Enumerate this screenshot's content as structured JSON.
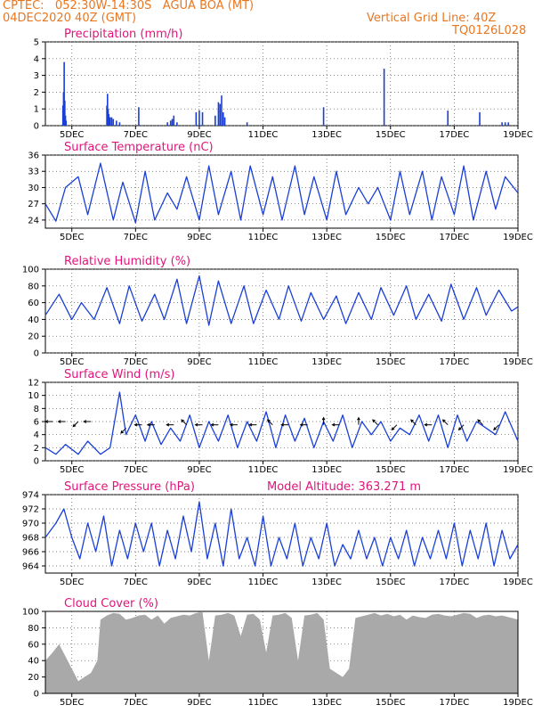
{
  "header": {
    "line1": "CPTEC:   052:30W-14:30S   AGUA BOA (MT)",
    "line2": "04DEC2020 40Z (GMT)",
    "right1": "Vertical Grid Line: 40Z",
    "right2": "TQ0126L028"
  },
  "colors": {
    "header": "#e87722",
    "title": "#e0157a",
    "series": "#1a3fd6",
    "cloud": "#a9a9a9",
    "wind_arrow": "#000000"
  },
  "date_labels": [
    "5DEC",
    "7DEC",
    "9DEC",
    "11DEC",
    "13DEC",
    "15DEC",
    "17DEC",
    "19DEC"
  ],
  "chart_data": [
    {
      "type": "bar",
      "title": "Precipitation (mm/h)",
      "ylim": [
        0,
        5
      ],
      "yticks": [
        "0",
        "1",
        "2",
        "3",
        "4",
        "5"
      ],
      "x_range_days": [
        4.17,
        19.0
      ],
      "x": [
        4.72,
        4.74,
        4.76,
        4.78,
        4.8,
        4.82,
        6.1,
        6.12,
        6.14,
        6.16,
        6.2,
        6.25,
        6.3,
        6.4,
        6.5,
        7.1,
        8.0,
        8.1,
        8.15,
        8.2,
        8.3,
        8.9,
        9.0,
        9.1,
        9.5,
        9.6,
        9.65,
        9.7,
        9.75,
        9.8,
        10.5,
        12.9,
        14.8,
        16.8,
        17.8,
        18.5,
        18.6,
        18.7
      ],
      "values": [
        1.2,
        2.0,
        3.8,
        1.5,
        0.6,
        0.3,
        1.2,
        1.9,
        1.0,
        0.7,
        0.5,
        0.5,
        0.4,
        0.3,
        0.2,
        1.1,
        0.2,
        0.3,
        0.4,
        0.6,
        0.2,
        0.8,
        0.9,
        0.8,
        0.6,
        1.4,
        1.3,
        1.8,
        0.8,
        0.5,
        0.2,
        1.1,
        3.4,
        0.9,
        0.8,
        0.2,
        0.2,
        0.2
      ]
    },
    {
      "type": "line",
      "title": "Surface Temperature (nC)",
      "ylim": [
        22.5,
        36
      ],
      "yticks": [
        "24",
        "27",
        "30",
        "33",
        "36"
      ],
      "x": [
        4.17,
        4.5,
        4.8,
        5.2,
        5.5,
        5.9,
        6.3,
        6.6,
        7.0,
        7.3,
        7.6,
        8.0,
        8.3,
        8.6,
        9.0,
        9.3,
        9.6,
        10.0,
        10.3,
        10.6,
        11.0,
        11.3,
        11.6,
        12.0,
        12.3,
        12.6,
        13.0,
        13.3,
        13.6,
        14.0,
        14.3,
        14.6,
        15.0,
        15.3,
        15.6,
        16.0,
        16.3,
        16.6,
        17.0,
        17.3,
        17.6,
        18.0,
        18.3,
        18.6,
        19.0
      ],
      "values": [
        27,
        23.8,
        30,
        32,
        25,
        34.5,
        24,
        31,
        23.5,
        33,
        24,
        29,
        26,
        32,
        24,
        34,
        25,
        33,
        24,
        34,
        25,
        32,
        24,
        34,
        25,
        32,
        24,
        33,
        25,
        30,
        27,
        30,
        24,
        33,
        25,
        33,
        24,
        32,
        25,
        34,
        24,
        33,
        26,
        32,
        29
      ]
    },
    {
      "type": "line",
      "title": "Relative Humidity (%)",
      "ylim": [
        0,
        100
      ],
      "yticks": [
        "0",
        "20",
        "40",
        "60",
        "80",
        "100"
      ],
      "x": [
        4.17,
        4.6,
        5.0,
        5.3,
        5.7,
        6.1,
        6.5,
        6.8,
        7.2,
        7.6,
        7.9,
        8.3,
        8.6,
        9.0,
        9.3,
        9.6,
        10.0,
        10.4,
        10.7,
        11.1,
        11.5,
        11.8,
        12.2,
        12.5,
        12.9,
        13.3,
        13.6,
        14.0,
        14.4,
        14.7,
        15.1,
        15.5,
        15.8,
        16.2,
        16.6,
        16.9,
        17.3,
        17.7,
        18.0,
        18.4,
        18.8,
        19.0
      ],
      "values": [
        45,
        70,
        40,
        60,
        40,
        78,
        35,
        80,
        38,
        70,
        40,
        88,
        35,
        92,
        33,
        86,
        35,
        80,
        35,
        75,
        40,
        80,
        38,
        72,
        40,
        68,
        35,
        72,
        40,
        78,
        45,
        80,
        40,
        70,
        38,
        82,
        40,
        78,
        45,
        75,
        50,
        55
      ]
    },
    {
      "type": "line",
      "title": "Surface Wind (m/s)",
      "ylim": [
        0,
        12
      ],
      "yticks": [
        "0",
        "2",
        "4",
        "6",
        "8",
        "10",
        "12"
      ],
      "x": [
        4.17,
        4.5,
        4.8,
        5.2,
        5.5,
        5.9,
        6.2,
        6.5,
        6.7,
        7.0,
        7.3,
        7.5,
        7.8,
        8.1,
        8.4,
        8.7,
        9.0,
        9.3,
        9.6,
        9.9,
        10.2,
        10.5,
        10.8,
        11.1,
        11.4,
        11.7,
        12.0,
        12.3,
        12.6,
        12.9,
        13.2,
        13.5,
        13.8,
        14.1,
        14.4,
        14.7,
        15.0,
        15.3,
        15.6,
        15.9,
        16.2,
        16.5,
        16.8,
        17.1,
        17.4,
        17.7,
        18.0,
        18.3,
        18.6,
        19.0
      ],
      "values": [
        2,
        1,
        2.5,
        1,
        3,
        1,
        2,
        10.5,
        4,
        7,
        3,
        6,
        2.5,
        5,
        3,
        7,
        2,
        6,
        3,
        7,
        2,
        6,
        3,
        7.5,
        2,
        7,
        3,
        6.5,
        2,
        6,
        3,
        7,
        2,
        6,
        4,
        6,
        3,
        5,
        4,
        7,
        3,
        7,
        2,
        7,
        3,
        6,
        5,
        4,
        7.5,
        3
      ],
      "arrows": [
        {
          "x": 4.4,
          "y": 6,
          "dir": "W"
        },
        {
          "x": 4.8,
          "y": 6,
          "dir": "W"
        },
        {
          "x": 5.2,
          "y": 6,
          "dir": "SW"
        },
        {
          "x": 5.6,
          "y": 6,
          "dir": "W"
        },
        {
          "x": 6.7,
          "y": 5,
          "dir": "SW"
        },
        {
          "x": 7.2,
          "y": 5.5,
          "dir": "W"
        },
        {
          "x": 7.6,
          "y": 5.5,
          "dir": "W"
        },
        {
          "x": 8.2,
          "y": 5.5,
          "dir": "W"
        },
        {
          "x": 8.6,
          "y": 5.5,
          "dir": "NW"
        },
        {
          "x": 9.1,
          "y": 5.5,
          "dir": "W"
        },
        {
          "x": 9.6,
          "y": 5.5,
          "dir": "W"
        },
        {
          "x": 10.2,
          "y": 5.5,
          "dir": "W"
        },
        {
          "x": 10.8,
          "y": 5.5,
          "dir": "W"
        },
        {
          "x": 11.3,
          "y": 5.5,
          "dir": "NW"
        },
        {
          "x": 11.8,
          "y": 5.5,
          "dir": "W"
        },
        {
          "x": 12.4,
          "y": 5.5,
          "dir": "W"
        },
        {
          "x": 12.9,
          "y": 5.5,
          "dir": "N"
        },
        {
          "x": 13.4,
          "y": 5.5,
          "dir": "W"
        },
        {
          "x": 14.0,
          "y": 5.5,
          "dir": "N"
        },
        {
          "x": 14.6,
          "y": 5.5,
          "dir": "NW"
        },
        {
          "x": 15.2,
          "y": 5.5,
          "dir": "SW"
        },
        {
          "x": 15.8,
          "y": 5.5,
          "dir": "NW"
        },
        {
          "x": 16.3,
          "y": 5.5,
          "dir": "W"
        },
        {
          "x": 16.8,
          "y": 5.5,
          "dir": "NW"
        },
        {
          "x": 17.3,
          "y": 5.5,
          "dir": "SW"
        },
        {
          "x": 17.9,
          "y": 5.5,
          "dir": "NW"
        },
        {
          "x": 18.4,
          "y": 5.5,
          "dir": "SW"
        }
      ]
    },
    {
      "type": "line",
      "title": "Surface Pressure (hPa)",
      "subtitle": "Model Altitude: 363.271 m",
      "ylim": [
        963,
        974
      ],
      "yticks": [
        "964",
        "966",
        "968",
        "970",
        "972",
        "974"
      ],
      "x": [
        4.17,
        4.5,
        4.75,
        5.0,
        5.25,
        5.5,
        5.75,
        6.0,
        6.25,
        6.5,
        6.75,
        7.0,
        7.25,
        7.5,
        7.75,
        8.0,
        8.25,
        8.5,
        8.75,
        9.0,
        9.25,
        9.5,
        9.75,
        10.0,
        10.25,
        10.5,
        10.75,
        11.0,
        11.25,
        11.5,
        11.75,
        12.0,
        12.25,
        12.5,
        12.75,
        13.0,
        13.25,
        13.5,
        13.75,
        14.0,
        14.25,
        14.5,
        14.75,
        15.0,
        15.25,
        15.5,
        15.75,
        16.0,
        16.25,
        16.5,
        16.75,
        17.0,
        17.25,
        17.5,
        17.75,
        18.0,
        18.25,
        18.5,
        18.75,
        19.0
      ],
      "values": [
        968,
        970,
        972,
        968,
        965,
        970,
        966,
        971,
        964,
        969,
        965,
        970,
        966,
        970,
        964,
        969,
        965,
        971,
        966,
        973,
        965,
        970,
        964,
        972,
        965,
        968,
        964,
        971,
        964,
        968,
        965,
        970,
        964,
        968,
        965,
        970,
        964,
        967,
        965,
        969,
        965,
        968,
        964,
        968,
        965,
        969,
        964,
        968,
        965,
        969,
        965,
        970,
        964,
        969,
        965,
        970,
        964,
        969,
        965,
        967
      ]
    },
    {
      "type": "area",
      "title": "Cloud Cover (%)",
      "ylim": [
        0,
        100
      ],
      "yticks": [
        "0",
        "20",
        "40",
        "60",
        "80",
        "100"
      ],
      "x": [
        4.17,
        4.4,
        4.6,
        4.8,
        5.0,
        5.2,
        5.4,
        5.6,
        5.8,
        5.9,
        6.1,
        6.3,
        6.5,
        6.7,
        6.9,
        7.1,
        7.3,
        7.5,
        7.7,
        7.9,
        8.1,
        8.3,
        8.5,
        8.7,
        8.9,
        9.1,
        9.3,
        9.5,
        9.7,
        9.9,
        10.1,
        10.3,
        10.5,
        10.7,
        10.9,
        11.1,
        11.3,
        11.5,
        11.7,
        11.9,
        12.1,
        12.3,
        12.5,
        12.7,
        12.9,
        13.1,
        13.3,
        13.5,
        13.7,
        13.9,
        14.1,
        14.3,
        14.5,
        14.7,
        14.9,
        15.1,
        15.3,
        15.5,
        15.7,
        15.9,
        16.1,
        16.3,
        16.5,
        16.7,
        16.9,
        17.1,
        17.3,
        17.5,
        17.7,
        17.9,
        18.1,
        18.3,
        18.5,
        18.7,
        19.0
      ],
      "values": [
        40,
        50,
        60,
        45,
        30,
        15,
        20,
        25,
        40,
        90,
        95,
        98,
        97,
        90,
        92,
        95,
        96,
        90,
        95,
        85,
        92,
        94,
        96,
        95,
        98,
        99,
        40,
        95,
        96,
        98,
        95,
        70,
        96,
        97,
        90,
        50,
        95,
        96,
        98,
        92,
        40,
        95,
        96,
        98,
        90,
        30,
        25,
        20,
        30,
        92,
        94,
        96,
        98,
        95,
        97,
        94,
        96,
        90,
        95,
        93,
        92,
        96,
        97,
        95,
        94,
        96,
        98,
        97,
        92,
        95,
        96,
        94,
        95,
        93,
        90
      ]
    }
  ]
}
